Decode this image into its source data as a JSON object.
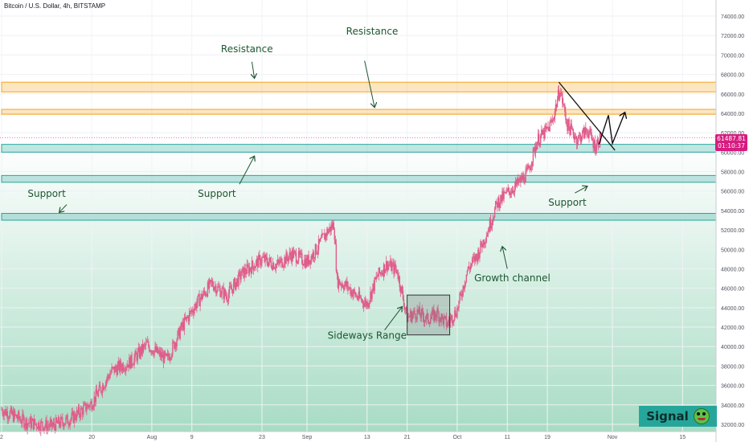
{
  "header": {
    "title": "Bitcoin / U.S. Dollar, 4h, BITSTAMP"
  },
  "price_tag": {
    "price": "61487.81",
    "countdown": "01:10:37"
  },
  "signal_badge": {
    "label": "Signal",
    "icon": "frog-emoji-icon"
  },
  "colors": {
    "candle": "#e05c8a",
    "resistance_zone": "#f5a623",
    "support_zone": "#26a69a",
    "annotation_text": "#1e5631",
    "price_tag": "#d81b80",
    "background_top": "#ffffff",
    "background_bottom": "#a8dcc4"
  },
  "chart_data": {
    "type": "candlestick",
    "title": "Bitcoin / U.S. Dollar, 4h, BITSTAMP",
    "ylim": [
      31500,
      75500
    ],
    "y_ticks": [
      32000,
      34000,
      36000,
      38000,
      40000,
      42000,
      44000,
      46000,
      48000,
      50000,
      52000,
      54000,
      56000,
      58000,
      60000,
      62000,
      64000,
      66000,
      68000,
      70000,
      72000,
      74000
    ],
    "y_tick_labels": [
      "32000.00",
      "34000.00",
      "36000.00",
      "38000.00",
      "40000.00",
      "42000.00",
      "44000.00",
      "46000.00",
      "48000.00",
      "50000.00",
      "52000.00",
      "54000.00",
      "56000.00",
      "58000.00",
      "60000.00",
      "62000.00",
      "64000.00",
      "66000.00",
      "68000.00",
      "70000.00",
      "72000.00",
      "74000.00"
    ],
    "x_ticks": [
      {
        "label": "2",
        "day": 0
      },
      {
        "label": "20",
        "day": 18
      },
      {
        "label": "Aug",
        "day": 30
      },
      {
        "label": "9",
        "day": 38
      },
      {
        "label": "23",
        "day": 52
      },
      {
        "label": "Sep",
        "day": 61
      },
      {
        "label": "13",
        "day": 73
      },
      {
        "label": "21",
        "day": 81
      },
      {
        "label": "Oct",
        "day": 91
      },
      {
        "label": "11",
        "day": 101
      },
      {
        "label": "19",
        "day": 109
      },
      {
        "label": "Nov",
        "day": 122
      },
      {
        "label": "15",
        "day": 136
      }
    ],
    "price_path": [
      {
        "day": 0,
        "price": 33500
      },
      {
        "day": 5,
        "price": 32200
      },
      {
        "day": 10,
        "price": 31800
      },
      {
        "day": 14,
        "price": 32600
      },
      {
        "day": 18,
        "price": 34200
      },
      {
        "day": 22,
        "price": 37500
      },
      {
        "day": 26,
        "price": 38500
      },
      {
        "day": 29,
        "price": 40200
      },
      {
        "day": 33,
        "price": 38600
      },
      {
        "day": 36,
        "price": 42000
      },
      {
        "day": 39,
        "price": 44500
      },
      {
        "day": 42,
        "price": 46500
      },
      {
        "day": 45,
        "price": 45200
      },
      {
        "day": 48,
        "price": 47500
      },
      {
        "day": 52,
        "price": 49000
      },
      {
        "day": 55,
        "price": 48400
      },
      {
        "day": 58,
        "price": 49500
      },
      {
        "day": 61,
        "price": 48700
      },
      {
        "day": 63,
        "price": 50100
      },
      {
        "day": 65,
        "price": 51800
      },
      {
        "day": 66.4,
        "price": 52600
      },
      {
        "day": 67,
        "price": 46800
      },
      {
        "day": 69,
        "price": 46200
      },
      {
        "day": 71,
        "price": 45100
      },
      {
        "day": 73,
        "price": 44400
      },
      {
        "day": 75,
        "price": 47200
      },
      {
        "day": 77,
        "price": 48500
      },
      {
        "day": 79,
        "price": 47800
      },
      {
        "day": 81,
        "price": 43000
      },
      {
        "day": 83,
        "price": 43500
      },
      {
        "day": 85,
        "price": 42800
      },
      {
        "day": 87,
        "price": 43400
      },
      {
        "day": 89,
        "price": 42300
      },
      {
        "day": 91,
        "price": 43800
      },
      {
        "day": 93,
        "price": 47800
      },
      {
        "day": 95,
        "price": 49400
      },
      {
        "day": 97,
        "price": 51800
      },
      {
        "day": 99,
        "price": 54800
      },
      {
        "day": 101,
        "price": 55800
      },
      {
        "day": 103,
        "price": 56700
      },
      {
        "day": 105,
        "price": 57800
      },
      {
        "day": 107,
        "price": 61200
      },
      {
        "day": 109,
        "price": 62300
      },
      {
        "day": 110,
        "price": 63200
      },
      {
        "day": 111.5,
        "price": 66500
      },
      {
        "day": 113,
        "price": 62800
      },
      {
        "day": 115,
        "price": 61300
      },
      {
        "day": 117,
        "price": 62300
      },
      {
        "day": 118.5,
        "price": 60600
      },
      {
        "day": 119.7,
        "price": 61500
      }
    ],
    "zones": [
      {
        "name": "Resistance",
        "kind": "resistance",
        "price_low": 66200,
        "price_high": 67200,
        "day_start": 0,
        "day_end": 144
      },
      {
        "name": "Resistance",
        "kind": "resistance",
        "price_low": 63900,
        "price_high": 64400,
        "day_start": 0,
        "day_end": 144
      },
      {
        "name": "Support",
        "kind": "support",
        "price_low": 60000,
        "price_high": 60800,
        "day_start": 0,
        "day_end": 144
      },
      {
        "name": "Support",
        "kind": "support",
        "price_low": 56900,
        "price_high": 57600,
        "day_start": 0,
        "day_end": 144
      },
      {
        "name": "Support",
        "kind": "support",
        "price_low": 53000,
        "price_high": 53700,
        "day_start": 0,
        "day_end": 144
      }
    ],
    "sideways_box": {
      "day_start": 81,
      "day_end": 89.5,
      "price_low": 41200,
      "price_high": 45300
    },
    "trendline": [
      {
        "day": 111.3,
        "price": 67200
      },
      {
        "day": 122.5,
        "price": 60200
      }
    ],
    "projection_path": [
      {
        "day": 119.3,
        "price": 60800
      },
      {
        "day": 121.2,
        "price": 63800
      },
      {
        "day": 122,
        "price": 60900
      },
      {
        "day": 124.5,
        "price": 64100
      }
    ],
    "annotations": [
      {
        "text": "Resistance",
        "text_day": 49,
        "text_price": 70300,
        "arrow_from": [
          50,
          69300
        ],
        "arrow_to": [
          50.5,
          67600
        ]
      },
      {
        "text": "Resistance",
        "text_day": 74,
        "text_price": 72100,
        "arrow_from": [
          72.5,
          69400
        ],
        "arrow_to": [
          74.5,
          64600
        ]
      },
      {
        "text": "Support",
        "text_day": 43,
        "text_price": 55400,
        "arrow_from": [
          47.5,
          56700
        ],
        "arrow_to": [
          50.5,
          59600
        ]
      },
      {
        "text": "Support",
        "text_day": 9,
        "text_price": 55400,
        "arrow_from": [
          13,
          54600
        ],
        "arrow_to": [
          11.5,
          53800
        ]
      },
      {
        "text": "Support",
        "text_day": 113,
        "text_price": 54500,
        "arrow_from": [
          114.5,
          55800
        ],
        "arrow_to": [
          117,
          56500
        ]
      },
      {
        "text": "Growth channel",
        "text_day": 102,
        "text_price": 46700,
        "arrow_from": [
          101,
          48000
        ],
        "arrow_to": [
          100,
          50300
        ]
      },
      {
        "text": "Sideways Range",
        "text_day": 73,
        "text_price": 40800,
        "arrow_from": [
          76.5,
          41700
        ],
        "arrow_to": [
          80,
          44100
        ]
      }
    ]
  }
}
